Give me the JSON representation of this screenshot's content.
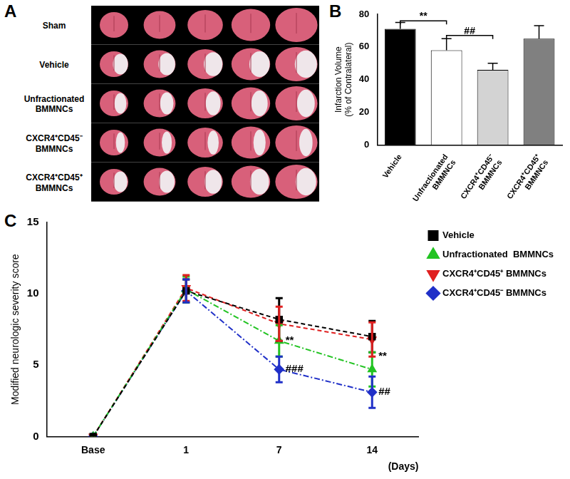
{
  "image_panel": {
    "panel": "A",
    "rows": [
      "Sham",
      "Vehicle",
      "Unfractionated BMMNCs",
      "CXCR4⁺CD45⁻ BMMNCs",
      "CXCR4⁺CD45⁺ BMMNCs"
    ]
  },
  "chart_data": [
    {
      "panel": "B",
      "type": "bar",
      "categories": [
        "Vehicle",
        "Unfractionated BMMNCs",
        "CXCR4⁺CD45⁻ BMMNCs",
        "CXCR4⁺CD45⁺ BMMNCs"
      ],
      "values": [
        71,
        58,
        46,
        65
      ],
      "errors": [
        4,
        7,
        4,
        8
      ],
      "colors": [
        "#000000",
        "#ffffff",
        "#d3d3d3",
        "#808080"
      ],
      "ylabel": [
        "Infarction Volume",
        "(% of Contralateral)"
      ],
      "ylim": [
        0,
        80
      ],
      "yticks": [
        0,
        20,
        40,
        60,
        80
      ],
      "grid": false,
      "annotations": [
        {
          "text": "**",
          "from": "Vehicle",
          "to": "Unfractionated BMMNCs",
          "y": 76
        },
        {
          "text": "##",
          "from": "Unfractionated BMMNCs",
          "to": "CXCR4⁺CD45⁻ BMMNCs",
          "y": 67
        }
      ]
    },
    {
      "panel": "C",
      "type": "line",
      "categories": [
        "Base",
        "1",
        "7",
        "14"
      ],
      "xlabel": "(Days)",
      "ylabel": "Modified neurologic severity score",
      "ylim": [
        0,
        15
      ],
      "yticks": [
        0,
        5,
        10,
        15
      ],
      "grid": false,
      "legend": "upper right",
      "series": [
        {
          "name": "Vehicle",
          "color": "#000000",
          "marker": "square",
          "line_style": "dashed",
          "values": [
            0,
            10.2,
            8.2,
            7.0
          ],
          "errors": [
            0,
            0.8,
            1.5,
            1.1
          ]
        },
        {
          "name": "Unfractionated  BMMNCs",
          "color": "#22c322",
          "marker": "triangle",
          "line_style": "dashdot",
          "values": [
            0,
            10.3,
            6.7,
            4.7
          ],
          "errors": [
            0,
            0.9,
            1.1,
            1.2
          ]
        },
        {
          "name": "CXCR4⁺CD45⁺ BMMNCs",
          "color": "#e02020",
          "marker": "triangle-down",
          "line_style": "dashed",
          "values": [
            0,
            10.4,
            7.9,
            6.8
          ],
          "errors": [
            0,
            0.9,
            1.2,
            1.2
          ]
        },
        {
          "name": "CXCR4⁺CD45⁻ BMMNCs",
          "color": "#2030c8",
          "marker": "diamond",
          "line_style": "dashdot",
          "values": [
            0,
            10.2,
            4.7,
            3.1
          ],
          "errors": [
            0,
            0.8,
            0.9,
            1.1
          ]
        }
      ],
      "annotations": [
        {
          "text": "**",
          "x": "7",
          "y": 6.7
        },
        {
          "text": "###",
          "x": "7",
          "y": 4.7
        },
        {
          "text": "**",
          "x": "14",
          "y": 5.6
        },
        {
          "text": "##",
          "x": "14",
          "y": 3.1
        }
      ]
    }
  ]
}
